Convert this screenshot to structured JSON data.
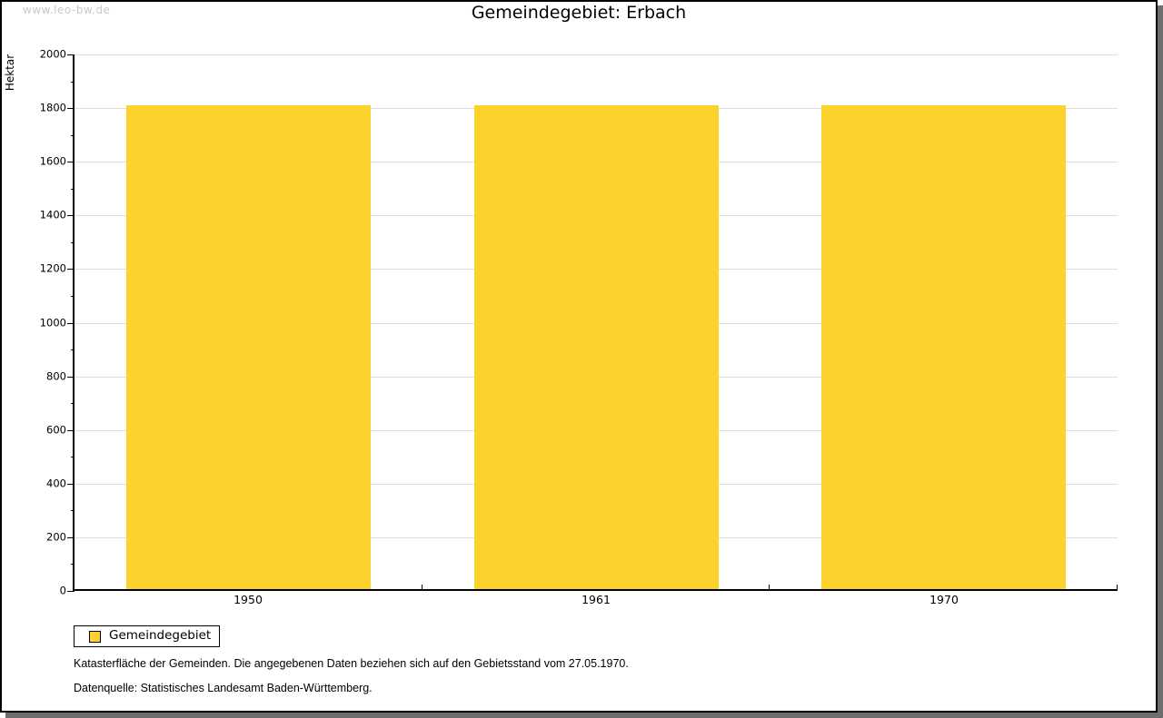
{
  "watermark": "www.leo-bw.de",
  "chart_data": {
    "type": "bar",
    "title": "Gemeindegebiet: Erbach",
    "xlabel": "",
    "ylabel": "Hektar",
    "categories": [
      "1950",
      "1961",
      "1970"
    ],
    "series": [
      {
        "name": "Gemeindegebiet",
        "values": [
          1810,
          1810,
          1810
        ]
      }
    ],
    "ylim": [
      0,
      2000
    ],
    "yticks": [
      0,
      200,
      400,
      600,
      800,
      1000,
      1200,
      1400,
      1600,
      1800,
      2000
    ],
    "minor_tick_step": 100,
    "grid": true,
    "legend_position": "bottom-left",
    "bar_color": "#FCD32D"
  },
  "legend": {
    "items": [
      {
        "label": "Gemeindegebiet",
        "color": "#FCD32D"
      }
    ]
  },
  "notes": [
    "Katasterfläche der Gemeinden. Die angegebenen Daten beziehen sich auf den Gebietsstand vom 27.05.1970.",
    "Datenquelle: Statistisches Landesamt Baden-Württemberg."
  ],
  "colors": {
    "bar": "#FCD32D",
    "grid": "#DDDDDD",
    "axis": "#000000",
    "watermark": "#C9C9C9",
    "frame_border": "#000000",
    "frame_shadow": "#6E6E6E"
  }
}
